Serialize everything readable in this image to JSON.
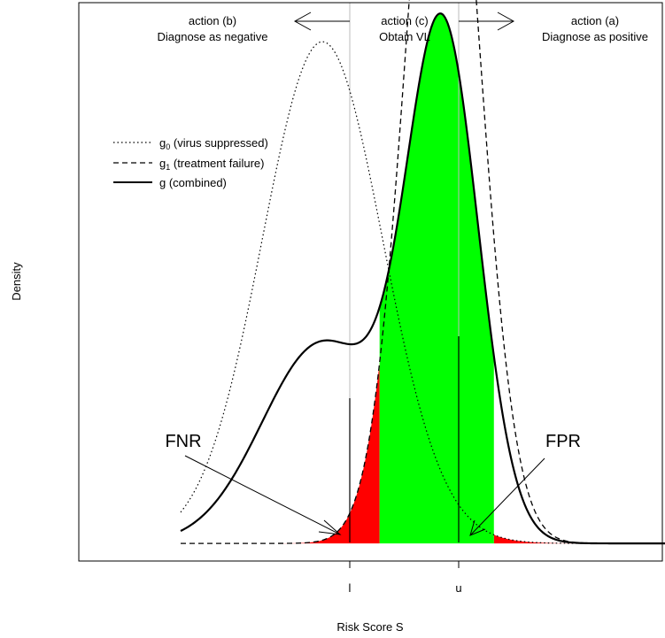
{
  "chart_data": {
    "type": "line",
    "title": "",
    "xlabel": "Risk Score S",
    "ylabel": "Density",
    "xlim": [
      -4.05,
      5.65
    ],
    "ylim": [
      -0.014,
      0.43
    ],
    "grid": false,
    "legend_position": "top-left",
    "ticks": [
      {
        "label": "l",
        "x": 0.95
      },
      {
        "label": "u",
        "x": 2.85
      }
    ],
    "thresholds": {
      "l": 0.95,
      "u": 2.85
    },
    "legend": [
      {
        "key": "g0",
        "base": "g",
        "sub": "0",
        "desc": " (virus suppressed)",
        "style": "dotted"
      },
      {
        "key": "g1",
        "base": "g",
        "sub": "1",
        "desc": " (treatment failure)",
        "style": "dashed"
      },
      {
        "key": "g",
        "base": "g",
        "sub": "",
        "desc": "  (combined)",
        "style": "solid"
      }
    ],
    "series": [
      {
        "key": "g0",
        "dist": "normal",
        "mean": 0.0,
        "sd": 1.0,
        "weight": 1.0,
        "style": "dotted",
        "peak": 0.399
      },
      {
        "key": "g1",
        "dist": "normal",
        "mean": 2.0,
        "sd": 0.6,
        "weight": 1.0,
        "style": "dashed",
        "peak": 0.665
      },
      {
        "key": "g",
        "dist": "mixture",
        "components": [
          "g0",
          "g1"
        ],
        "weights": [
          0.4,
          0.6
        ],
        "style": "solid",
        "peak": 0.41
      }
    ],
    "shaded_regions": [
      {
        "name": "FNR",
        "color": "#ff0000",
        "curve": "g1",
        "from": -4.05,
        "to": 0.95
      },
      {
        "name": "FPR",
        "color": "#ff0000",
        "curve": "g0",
        "from": 2.85,
        "to": 5.65
      },
      {
        "name": "Obtain VL",
        "color": "#00ff00",
        "curve": "g",
        "from": 0.95,
        "to": 2.85
      }
    ],
    "annotations": {
      "actions": [
        {
          "key": "action_b",
          "line1": "action (b)",
          "line2": "Diagnose as negative"
        },
        {
          "key": "action_c",
          "line1": "action (c)",
          "line2": "Obtain VL"
        },
        {
          "key": "action_a",
          "line1": "action (a)",
          "line2": "Diagnose as positive"
        }
      ],
      "fnr_label": "FNR",
      "fpr_label": "FPR"
    }
  }
}
